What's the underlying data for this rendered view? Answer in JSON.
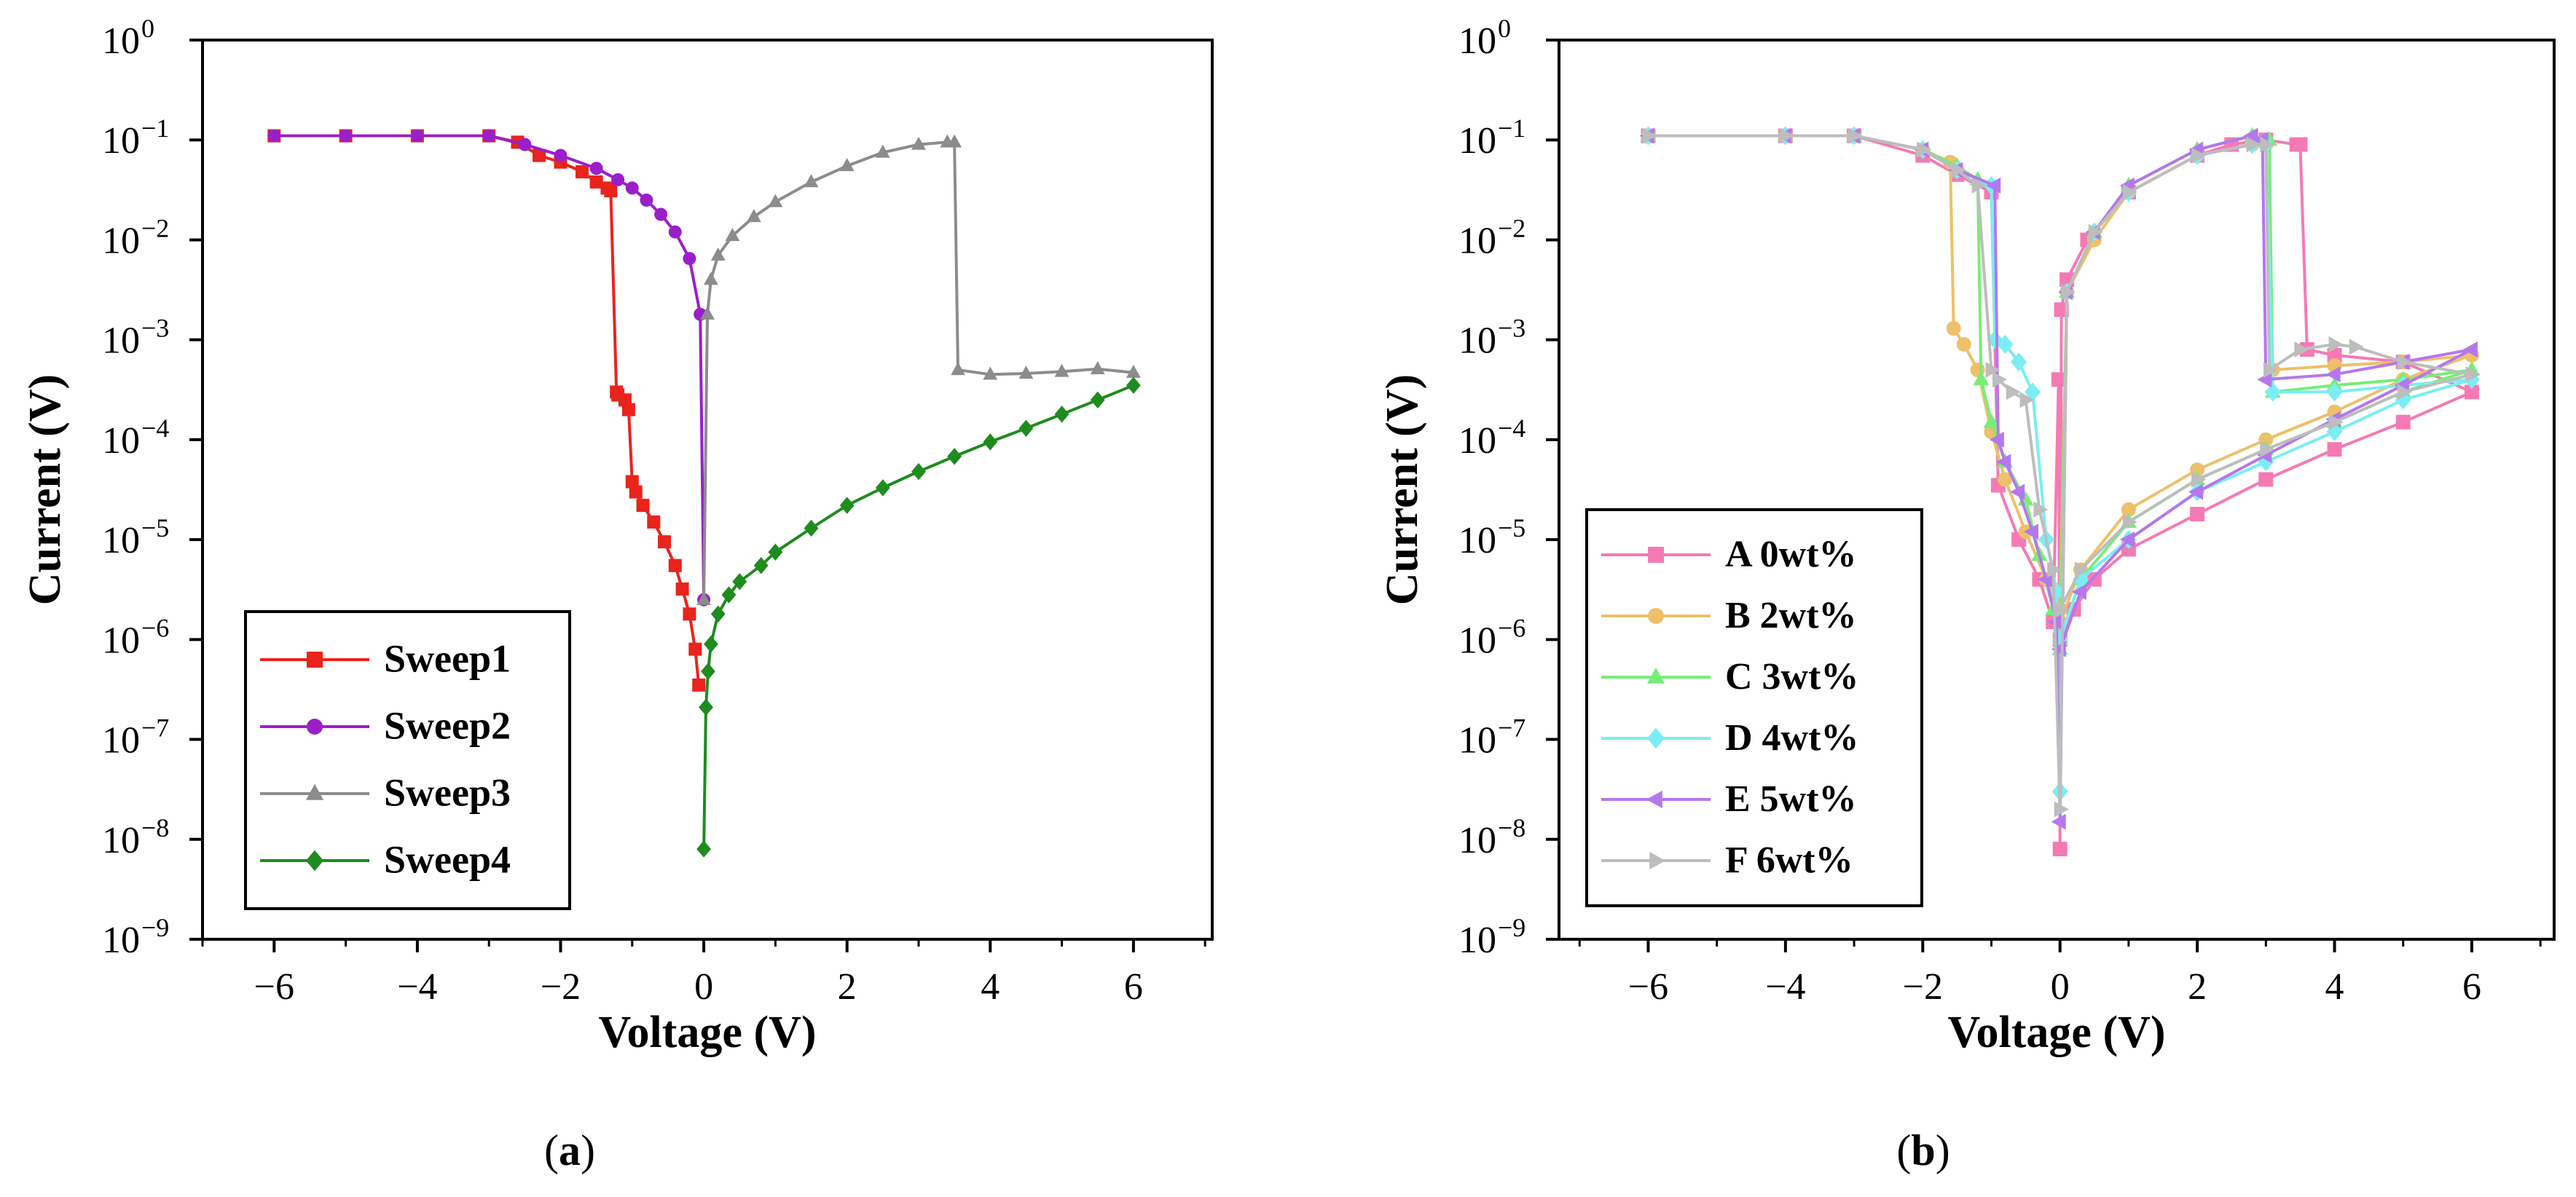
{
  "chart_data": [
    {
      "type": "line",
      "panel_label": "(a)",
      "panel_letter": "a",
      "xlabel": "Voltage (V)",
      "ylabel": "Current (V)",
      "xlim": [
        -7,
        7.1
      ],
      "ylim_log10": [
        -9,
        0
      ],
      "x_ticks": [
        -6,
        -4,
        -2,
        0,
        2,
        4,
        6
      ],
      "x_tick_labels": [
        "−6",
        "−4",
        "−2",
        "0",
        "2",
        "4",
        "6"
      ],
      "y_ticks_log10": [
        -9,
        -8,
        -7,
        -6,
        -5,
        -4,
        -3,
        -2,
        -1,
        0
      ],
      "y_tick_labels": [
        {
          "base": "10",
          "exp": "−9"
        },
        {
          "base": "10",
          "exp": "−8"
        },
        {
          "base": "10",
          "exp": "−7"
        },
        {
          "base": "10",
          "exp": "−6"
        },
        {
          "base": "10",
          "exp": "−5"
        },
        {
          "base": "10",
          "exp": "−4"
        },
        {
          "base": "10",
          "exp": "−3"
        },
        {
          "base": "10",
          "exp": "−2"
        },
        {
          "base": "10",
          "exp": "−1"
        },
        {
          "base": "10",
          "exp": "0"
        }
      ],
      "legend_position": "bottom-left",
      "series": [
        {
          "name": "Sweep1",
          "color": "#e8241c",
          "marker": "square",
          "x": [
            -6,
            -5,
            -4,
            -3,
            -2.6,
            -2.3,
            -2,
            -1.7,
            -1.5,
            -1.35,
            -1.3,
            -1.22,
            -1.2,
            -1.1,
            -1.05,
            -1.0,
            -0.95,
            -0.85,
            -0.7,
            -0.55,
            -0.4,
            -0.3,
            -0.2,
            -0.12,
            -0.07
          ],
          "y": [
            0.11,
            0.11,
            0.11,
            0.11,
            0.095,
            0.07,
            0.06,
            0.048,
            0.038,
            0.033,
            0.031,
            0.0003,
            0.00028,
            0.00025,
            0.0002,
            3.8e-05,
            3e-05,
            2.2e-05,
            1.5e-05,
            9.5e-06,
            5.5e-06,
            3.2e-06,
            1.8e-06,
            8e-07,
            3.5e-07
          ]
        },
        {
          "name": "Sweep2",
          "color": "#9b1fc9",
          "marker": "circle",
          "x": [
            -6,
            -5,
            -4,
            -3,
            -2.5,
            -2,
            -1.5,
            -1.2,
            -1,
            -0.8,
            -0.6,
            -0.4,
            -0.2,
            -0.05,
            0.0
          ],
          "y": [
            0.11,
            0.11,
            0.11,
            0.11,
            0.09,
            0.07,
            0.052,
            0.04,
            0.033,
            0.025,
            0.018,
            0.012,
            0.0065,
            0.0018,
            2.5e-06
          ]
        },
        {
          "name": "Sweep3",
          "color": "#8c8c8c",
          "marker": "triangle",
          "x": [
            0.0,
            0.05,
            0.1,
            0.2,
            0.4,
            0.7,
            1.0,
            1.5,
            2.0,
            2.5,
            3.0,
            3.4,
            3.5,
            3.55,
            4.0,
            4.5,
            5.0,
            5.5,
            6.0
          ],
          "y": [
            2.5e-06,
            0.0018,
            0.004,
            0.007,
            0.011,
            0.017,
            0.024,
            0.038,
            0.055,
            0.075,
            0.09,
            0.095,
            0.095,
            0.0005,
            0.00045,
            0.00046,
            0.00048,
            0.00051,
            0.00047
          ]
        },
        {
          "name": "Sweep4",
          "color": "#1e8c1e",
          "marker": "diamond",
          "x": [
            0.0,
            0.03,
            0.06,
            0.1,
            0.2,
            0.35,
            0.5,
            0.8,
            1.0,
            1.5,
            2.0,
            2.5,
            3.0,
            3.5,
            4.0,
            4.5,
            5.0,
            5.5,
            6.0
          ],
          "y": [
            8e-09,
            2.1e-07,
            4.8e-07,
            9e-07,
            1.8e-06,
            2.8e-06,
            3.8e-06,
            5.5e-06,
            7.5e-06,
            1.3e-05,
            2.2e-05,
            3.3e-05,
            4.8e-05,
            6.8e-05,
            9.5e-05,
            0.00013,
            0.00018,
            0.00025,
            0.00035
          ]
        }
      ]
    },
    {
      "type": "line",
      "panel_label": "(b)",
      "panel_letter": "b",
      "xlabel": "Voltage (V)",
      "ylabel": "Current (V)",
      "xlim": [
        -7.3,
        7.2
      ],
      "ylim_log10": [
        -9,
        0
      ],
      "x_ticks": [
        -6,
        -4,
        -2,
        0,
        2,
        4,
        6
      ],
      "x_tick_labels": [
        "−6",
        "−4",
        "−2",
        "0",
        "2",
        "4",
        "6"
      ],
      "y_ticks_log10": [
        -9,
        -8,
        -7,
        -6,
        -5,
        -4,
        -3,
        -2,
        -1,
        0
      ],
      "y_tick_labels": [
        {
          "base": "10",
          "exp": "−9"
        },
        {
          "base": "10",
          "exp": "−8"
        },
        {
          "base": "10",
          "exp": "−7"
        },
        {
          "base": "10",
          "exp": "−6"
        },
        {
          "base": "10",
          "exp": "−5"
        },
        {
          "base": "10",
          "exp": "−4"
        },
        {
          "base": "10",
          "exp": "−3"
        },
        {
          "base": "10",
          "exp": "−2"
        },
        {
          "base": "10",
          "exp": "−1"
        },
        {
          "base": "10",
          "exp": "0"
        }
      ],
      "legend_position": "left",
      "series": [
        {
          "name": "A 0wt%",
          "color": "#f57ab4",
          "marker": "square",
          "x": [
            -6,
            -4,
            -3,
            -2,
            -1.5,
            -1.0,
            -0.9,
            -0.6,
            -0.3,
            -0.1,
            -0.02,
            0.0,
            0.02,
            0.1,
            0.4,
            1.0,
            2.0,
            2.5,
            3.0,
            3.45,
            3.5,
            3.6,
            4.0,
            5.0,
            6.0,
            5.0,
            4.0,
            3.0,
            2.0,
            1.0,
            0.5,
            0.2,
            0.0
          ],
          "y": [
            0.11,
            0.11,
            0.11,
            0.07,
            0.045,
            0.03,
            3.5e-05,
            1e-05,
            4e-06,
            1.5e-06,
            0.0004,
            8e-09,
            0.002,
            0.004,
            0.01,
            0.03,
            0.07,
            0.09,
            0.1,
            0.09,
            0.09,
            0.0008,
            0.0007,
            0.0006,
            0.0003,
            0.00015,
            8e-05,
            4e-05,
            1.8e-05,
            8e-06,
            4e-06,
            2e-06,
            1e-06
          ]
        },
        {
          "name": "B 2wt%",
          "color": "#eec06a",
          "marker": "circle",
          "x": [
            -6,
            -4,
            -3,
            -2,
            -1.6,
            -1.55,
            -1.4,
            -1.2,
            -1.0,
            -0.8,
            -0.5,
            -0.2,
            0.0,
            0.1,
            0.5,
            1.0,
            2.0,
            2.8,
            3.0,
            3.1,
            4.0,
            5.0,
            6.0,
            5.0,
            4.0,
            3.0,
            2.0,
            1.0,
            0.3,
            0.0
          ],
          "y": [
            0.11,
            0.11,
            0.11,
            0.08,
            0.06,
            0.0013,
            0.0009,
            0.0005,
            0.00012,
            4e-05,
            1.2e-05,
            4e-06,
            2e-06,
            0.003,
            0.01,
            0.03,
            0.07,
            0.09,
            0.09,
            0.0005,
            0.00055,
            0.0006,
            0.0007,
            0.0004,
            0.00019,
            0.0001,
            5e-05,
            2e-05,
            5e-06,
            1.5e-06
          ]
        },
        {
          "name": "C 3wt%",
          "color": "#77ee77",
          "marker": "triangle",
          "x": [
            -6,
            -4,
            -3,
            -2,
            -1.5,
            -1.2,
            -1.15,
            -1.0,
            -0.8,
            -0.5,
            -0.3,
            -0.1,
            0.0,
            0.1,
            0.5,
            1.0,
            2.0,
            2.8,
            3.05,
            3.1,
            4.0,
            5.0,
            6.0,
            5.0,
            4.0,
            3.0,
            2.0,
            1.0,
            0.3,
            0.0
          ],
          "y": [
            0.11,
            0.11,
            0.11,
            0.08,
            0.055,
            0.04,
            0.0004,
            0.00015,
            6e-05,
            2.5e-05,
            7e-06,
            2e-06,
            8e-07,
            0.003,
            0.012,
            0.035,
            0.08,
            0.11,
            0.1,
            0.0003,
            0.00035,
            0.0004,
            0.0005,
            0.0003,
            0.00015,
            8e-05,
            4e-05,
            1.5e-05,
            4e-06,
            1e-06
          ]
        },
        {
          "name": "D 4wt%",
          "color": "#7aeef2",
          "marker": "diamond",
          "x": [
            -6,
            -4,
            -3,
            -2,
            -1.5,
            -1.0,
            -0.95,
            -0.8,
            -0.6,
            -0.4,
            -0.2,
            -0.05,
            0.0,
            0.1,
            0.5,
            1.0,
            2.0,
            2.8,
            3.0,
            3.1,
            4.0,
            5.0,
            6.0,
            5.0,
            4.0,
            3.0,
            2.0,
            1.0,
            0.3,
            0.0
          ],
          "y": [
            0.11,
            0.11,
            0.11,
            0.08,
            0.05,
            0.035,
            0.001,
            0.0009,
            0.0006,
            0.0003,
            1e-05,
            3e-06,
            3e-08,
            0.003,
            0.012,
            0.03,
            0.07,
            0.09,
            0.09,
            0.0003,
            0.0003,
            0.00035,
            0.0004,
            0.00025,
            0.00012,
            6e-05,
            3e-05,
            1e-05,
            4e-06,
            1e-06
          ]
        },
        {
          "name": "E 5wt%",
          "color": "#b577ee",
          "marker": "triangle-left",
          "x": [
            -6,
            -4,
            -3,
            -2,
            -1.5,
            -0.95,
            -0.9,
            -0.8,
            -0.6,
            -0.4,
            -0.2,
            -0.05,
            0.0,
            0.1,
            0.5,
            1.0,
            2.0,
            2.8,
            2.95,
            3.0,
            4.0,
            5.0,
            6.0,
            5.0,
            4.0,
            3.0,
            2.0,
            1.0,
            0.3,
            0.0
          ],
          "y": [
            0.11,
            0.11,
            0.11,
            0.08,
            0.05,
            0.035,
            0.0001,
            6e-05,
            3e-05,
            1.2e-05,
            4e-06,
            1.5e-06,
            1.5e-08,
            0.003,
            0.012,
            0.035,
            0.08,
            0.11,
            0.1,
            0.0004,
            0.00045,
            0.0006,
            0.0008,
            0.00035,
            0.00016,
            7e-05,
            3e-05,
            1e-05,
            3e-06,
            8e-07
          ]
        },
        {
          "name": "F 6wt%",
          "color": "#bdbdbd",
          "marker": "triangle-right",
          "x": [
            -6,
            -4,
            -3,
            -2,
            -1.5,
            -1.2,
            -1.0,
            -0.9,
            -0.7,
            -0.5,
            -0.3,
            -0.1,
            0.0,
            0.1,
            0.5,
            1.0,
            2.0,
            2.8,
            3.0,
            3.05,
            3.5,
            4.0,
            4.3,
            5.0,
            6.0,
            5.0,
            4.0,
            3.0,
            2.0,
            1.0,
            0.3,
            0.0
          ],
          "y": [
            0.11,
            0.11,
            0.11,
            0.08,
            0.05,
            0.035,
            0.0005,
            0.0004,
            0.0003,
            0.00025,
            2e-05,
            5e-06,
            2e-08,
            0.003,
            0.012,
            0.03,
            0.07,
            0.09,
            0.09,
            0.0005,
            0.0008,
            0.0009,
            0.00085,
            0.0006,
            0.00045,
            0.0003,
            0.00015,
            8e-05,
            4e-05,
            1.5e-05,
            5e-06,
            2e-06
          ]
        }
      ]
    }
  ]
}
